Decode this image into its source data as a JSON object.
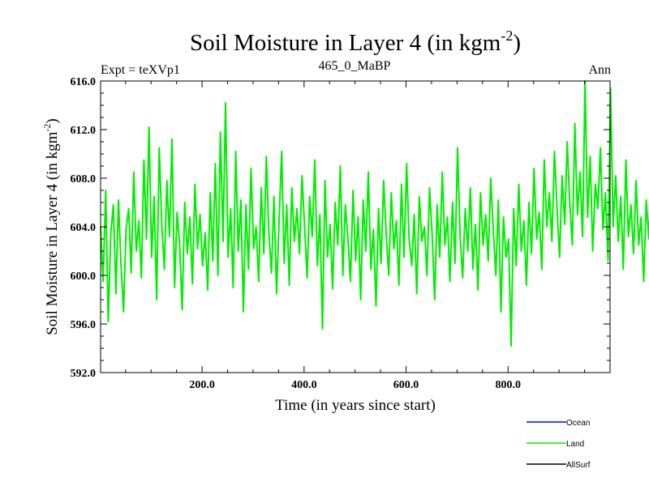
{
  "chart_data": {
    "type": "line",
    "title": "Soil Moisture in Layer 4 (in kgm",
    "title_sup": "-2",
    "title_end": ")",
    "subtitle_left": "Expt = teXVp1",
    "subtitle_center": "465_0_MaBP",
    "subtitle_right": "Ann",
    "xlabel": "Time (in years since start)",
    "ylabel": "Soil Moisture in Layer 4 (in kgm",
    "ylabel_sup": "-2",
    "ylabel_end": ")",
    "xlim": [
      1,
      1000
    ],
    "ylim": [
      592,
      616
    ],
    "xticks": [
      200,
      400,
      600,
      800
    ],
    "xtick_labels": [
      "200.0",
      "400.0",
      "600.0",
      "800.0"
    ],
    "yticks": [
      592,
      596,
      600,
      604,
      608,
      612,
      616
    ],
    "ytick_labels": [
      "592.0",
      "596.0",
      "600.0",
      "604.0",
      "608.0",
      "612.0",
      "616.0"
    ],
    "legend": [
      {
        "name": "Ocean",
        "color": "#0000ff"
      },
      {
        "name": "Land",
        "color": "#00ee00"
      },
      {
        "name": "AllSurf",
        "color": "#000000"
      }
    ],
    "series": [
      {
        "name": "Land",
        "color": "#00ee00",
        "x_start": 1,
        "x_step": 5,
        "values": [
          604.0,
          599.5,
          607.0,
          596.2,
          603.5,
          605.8,
          598.5,
          606.2,
          601.0,
          597.0,
          603.8,
          605.5,
          600.2,
          608.5,
          602.0,
          604.5,
          599.8,
          609.5,
          603.0,
          612.2,
          601.5,
          606.5,
          598.0,
          610.5,
          604.2,
          600.5,
          607.8,
          603.2,
          611.2,
          599.0,
          605.2,
          602.5,
          597.2,
          606.0,
          601.8,
          604.8,
          599.3,
          607.5,
          602.2,
          605.0,
          600.8,
          603.5,
          598.8,
          606.8,
          601.2,
          609.2,
          600.0,
          611.8,
          602.8,
          614.2,
          601.5,
          605.5,
          599.0,
          610.2,
          602.0,
          606.2,
          597.0,
          605.8,
          600.5,
          608.8,
          602.2,
          604.0,
          599.5,
          607.2,
          601.8,
          609.8,
          603.5,
          600.2,
          606.5,
          598.5,
          604.5,
          610.2,
          601.0,
          605.8,
          599.2,
          607.2,
          602.8,
          605.5,
          601.8,
          608.2,
          604.0,
          599.8,
          606.5,
          603.2,
          609.5,
          600.8,
          605.0,
          595.6,
          607.8,
          601.5,
          604.2,
          598.9,
          606.0,
          602.5,
          609.0,
          600.0,
          605.8,
          603.0,
          599.5,
          607.0,
          601.2,
          604.8,
          598.0,
          606.2,
          602.0,
          608.5,
          600.5,
          603.8,
          597.5,
          605.5,
          601.0,
          607.8,
          603.5,
          600.0,
          606.8,
          602.2,
          604.5,
          599.2,
          607.5,
          601.5,
          609.2,
          603.0,
          600.8,
          605.0,
          598.5,
          606.5,
          602.8,
          604.0,
          600.0,
          607.2,
          603.5,
          598.0,
          605.8,
          601.5,
          608.5,
          602.5,
          604.8,
          599.5,
          606.0,
          601.0,
          610.5,
          603.2,
          599.8,
          605.5,
          602.0,
          607.2,
          600.5,
          604.2,
          598.8,
          606.8,
          602.5,
          605.0,
          601.2,
          608.0,
          603.8,
          600.0,
          606.2,
          597.0,
          604.8,
          601.5,
          603.0,
          594.2,
          605.5,
          600.8,
          607.5,
          602.0,
          604.5,
          599.2,
          606.0,
          601.8,
          608.8,
          603.0,
          605.2,
          600.5,
          609.5,
          604.0,
          606.8,
          602.8,
          610.2,
          605.5,
          601.5,
          608.2,
          604.2,
          611.0,
          606.0,
          602.5,
          612.5,
          605.0,
          608.5,
          603.2,
          616.0,
          604.8,
          609.8,
          602.0,
          607.5,
          605.5,
          610.5,
          603.8,
          606.8,
          601.2,
          615.4,
          604.0,
          608.2,
          602.8,
          606.5,
          600.5,
          609.5,
          603.2,
          605.8,
          601.8,
          607.8,
          602.5,
          604.8,
          599.5,
          606.2,
          603.0,
          609.0,
          601.0,
          605.2,
          600.2,
          607.5,
          602.2,
          603.8,
          597.0,
          606.8,
          600.8,
          605.2,
          598.5,
          604.8,
          602.2,
          607.0,
          599.8,
          605.8,
          601.5,
          609.0,
          603.2,
          605.0,
          600.0,
          611.5,
          602.8,
          606.5,
          599.2,
          608.0,
          603.8,
          605.5,
          601.2,
          607.2,
          602.5,
          604.5,
          598.2,
          606.2,
          601.8,
          609.5,
          603.5,
          605.8,
          599.8,
          608.2,
          602.0,
          606.5,
          601.0,
          610.8,
          603.2,
          605.0,
          599.5,
          612.5,
          601.2,
          606.0,
          599.0,
          607.8,
          603.5,
          605.2,
          601.0
        ]
      }
    ]
  }
}
